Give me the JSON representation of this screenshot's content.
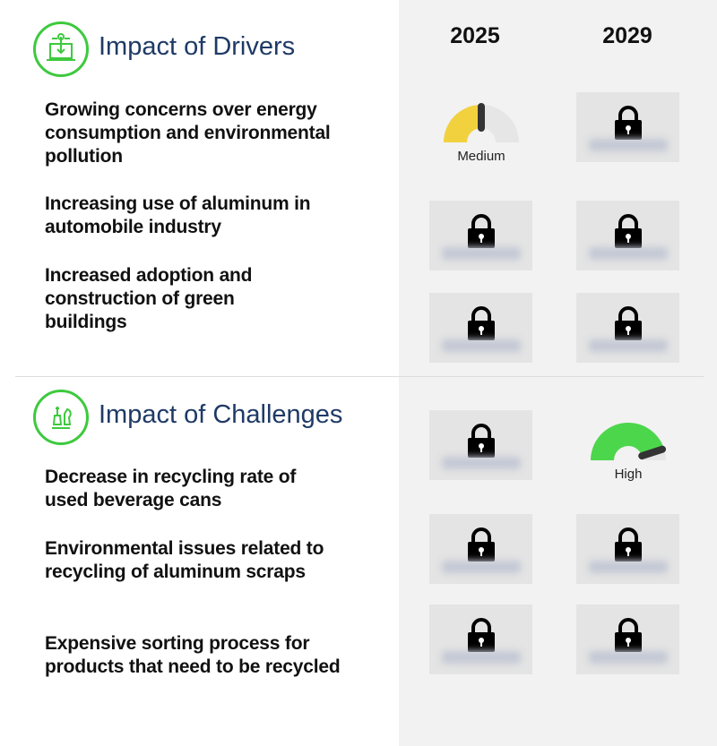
{
  "columns": [
    "2025",
    "2029"
  ],
  "drivers": {
    "title": "Impact of Drivers",
    "icon": "laptop-download-icon",
    "items": [
      {
        "label": "Growing concerns over energy consumption and environmental pollution",
        "y2025": {
          "type": "gauge",
          "label": "Medium",
          "level": 0.5,
          "color": "#f2d13f"
        },
        "y2029": {
          "type": "locked"
        }
      },
      {
        "label": "Increasing use of aluminum in automobile industry",
        "y2025": {
          "type": "locked"
        },
        "y2029": {
          "type": "locked"
        }
      },
      {
        "label": "Increased adoption and construction of green buildings",
        "y2025": {
          "type": "locked"
        },
        "y2029": {
          "type": "locked"
        }
      }
    ]
  },
  "challenges": {
    "title": "Impact of Challenges",
    "icon": "chess-pieces-icon",
    "items": [
      {
        "label": "Decrease in recycling rate of used beverage cans",
        "y2025": {
          "type": "locked"
        },
        "y2029": {
          "type": "gauge",
          "label": "High",
          "level": 0.9,
          "color": "#4cd64c"
        }
      },
      {
        "label": "Environmental issues related to recycling of aluminum scraps",
        "y2025": {
          "type": "locked"
        },
        "y2029": {
          "type": "locked"
        }
      },
      {
        "label": "Expensive sorting process for products that need to be recycled",
        "y2025": {
          "type": "locked"
        },
        "y2029": {
          "type": "locked"
        }
      }
    ]
  }
}
